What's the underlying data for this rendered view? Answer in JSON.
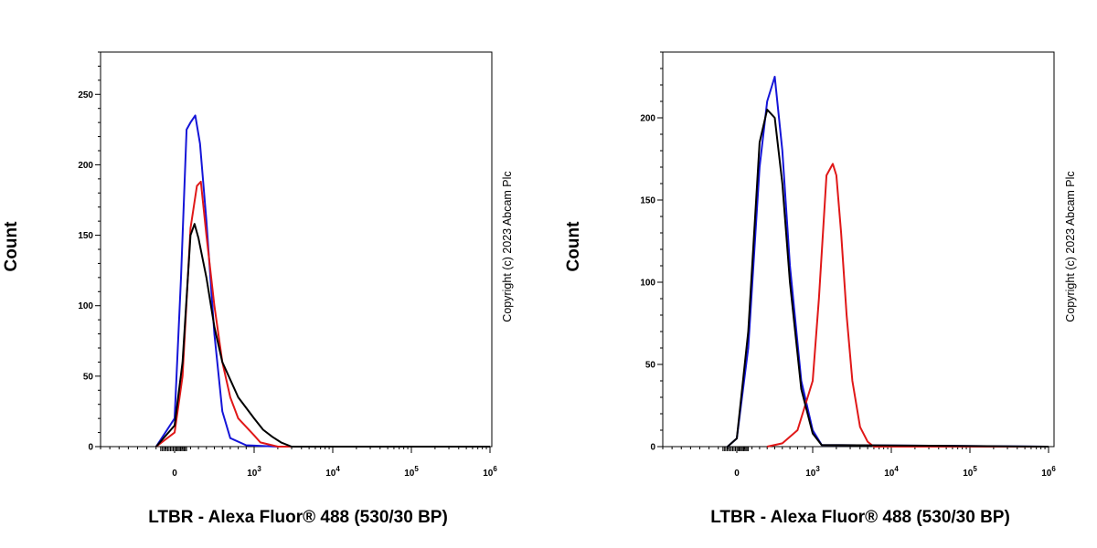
{
  "colors": {
    "blue": "#1515d8",
    "red": "#e01818",
    "black": "#000000"
  },
  "chart_data": [
    {
      "type": "line",
      "xlabel": "LTBR - Alexa Fluor® 488 (530/30 BP)",
      "ylabel": "Count",
      "copyright": "Copyright (c) 2023 Abcam Plc",
      "x_scale": "biexponential",
      "xlim": [
        -800,
        1000000
      ],
      "ylim": [
        0,
        280
      ],
      "x_ticks": [
        {
          "value": 0,
          "base": "0",
          "exp": ""
        },
        {
          "value": 1000,
          "base": "10",
          "exp": "3"
        },
        {
          "value": 10000,
          "base": "10",
          "exp": "4"
        },
        {
          "value": 100000,
          "base": "10",
          "exp": "5"
        },
        {
          "value": 1000000,
          "base": "10",
          "exp": "6"
        }
      ],
      "y_ticks": [
        "0",
        "50",
        "100",
        "150",
        "200",
        "250"
      ],
      "series": [
        {
          "color": "blue",
          "x": [
            -200,
            0,
            80,
            150,
            200,
            260,
            320,
            400,
            500,
            600,
            700,
            900,
            2000,
            1000000
          ],
          "y": [
            0,
            20,
            120,
            225,
            230,
            235,
            215,
            160,
            80,
            25,
            6,
            1,
            0,
            0
          ]
        },
        {
          "color": "red",
          "x": [
            -200,
            0,
            100,
            200,
            280,
            330,
            400,
            500,
            600,
            700,
            800,
            1000,
            1200,
            2000,
            1000000
          ],
          "y": [
            0,
            10,
            50,
            155,
            185,
            188,
            150,
            100,
            60,
            35,
            20,
            8,
            3,
            0,
            0
          ]
        },
        {
          "color": "black",
          "x": [
            -200,
            0,
            100,
            200,
            250,
            300,
            400,
            500,
            600,
            800,
            1000,
            1300,
            1700,
            2200,
            3000,
            1000000
          ],
          "y": [
            0,
            15,
            60,
            150,
            158,
            148,
            120,
            85,
            60,
            35,
            20,
            12,
            7,
            3,
            0,
            0
          ]
        }
      ]
    },
    {
      "type": "line",
      "xlabel": "LTBR - Alexa Fluor® 488 (530/30 BP)",
      "ylabel": "Count",
      "copyright": "Copyright (c) 2023 Abcam Plc",
      "x_scale": "biexponential",
      "xlim": [
        -800,
        1000000
      ],
      "ylim": [
        0,
        240
      ],
      "x_ticks": [
        {
          "value": 0,
          "base": "0",
          "exp": ""
        },
        {
          "value": 1000,
          "base": "10",
          "exp": "3"
        },
        {
          "value": 10000,
          "base": "10",
          "exp": "4"
        },
        {
          "value": 100000,
          "base": "10",
          "exp": "5"
        },
        {
          "value": 1000000,
          "base": "10",
          "exp": "6"
        }
      ],
      "y_ticks": [
        "0",
        "50",
        "100",
        "150",
        "200"
      ],
      "series": [
        {
          "color": "blue",
          "x": [
            -100,
            0,
            150,
            300,
            400,
            500,
            600,
            700,
            850,
            1000,
            1300,
            1000000
          ],
          "y": [
            0,
            5,
            60,
            170,
            210,
            225,
            180,
            110,
            40,
            10,
            1,
            0
          ]
        },
        {
          "color": "red",
          "x": [
            400,
            600,
            800,
            1000,
            1200,
            1500,
            1800,
            2000,
            2300,
            2700,
            3200,
            4000,
            5000,
            6000,
            1000000
          ],
          "y": [
            0,
            2,
            10,
            40,
            90,
            165,
            172,
            165,
            130,
            80,
            40,
            12,
            3,
            0,
            0
          ]
        },
        {
          "color": "black",
          "x": [
            -100,
            0,
            150,
            300,
            400,
            500,
            600,
            700,
            850,
            1000,
            1300,
            1000000
          ],
          "y": [
            0,
            5,
            70,
            185,
            205,
            200,
            160,
            100,
            35,
            8,
            1,
            0
          ]
        }
      ]
    }
  ]
}
